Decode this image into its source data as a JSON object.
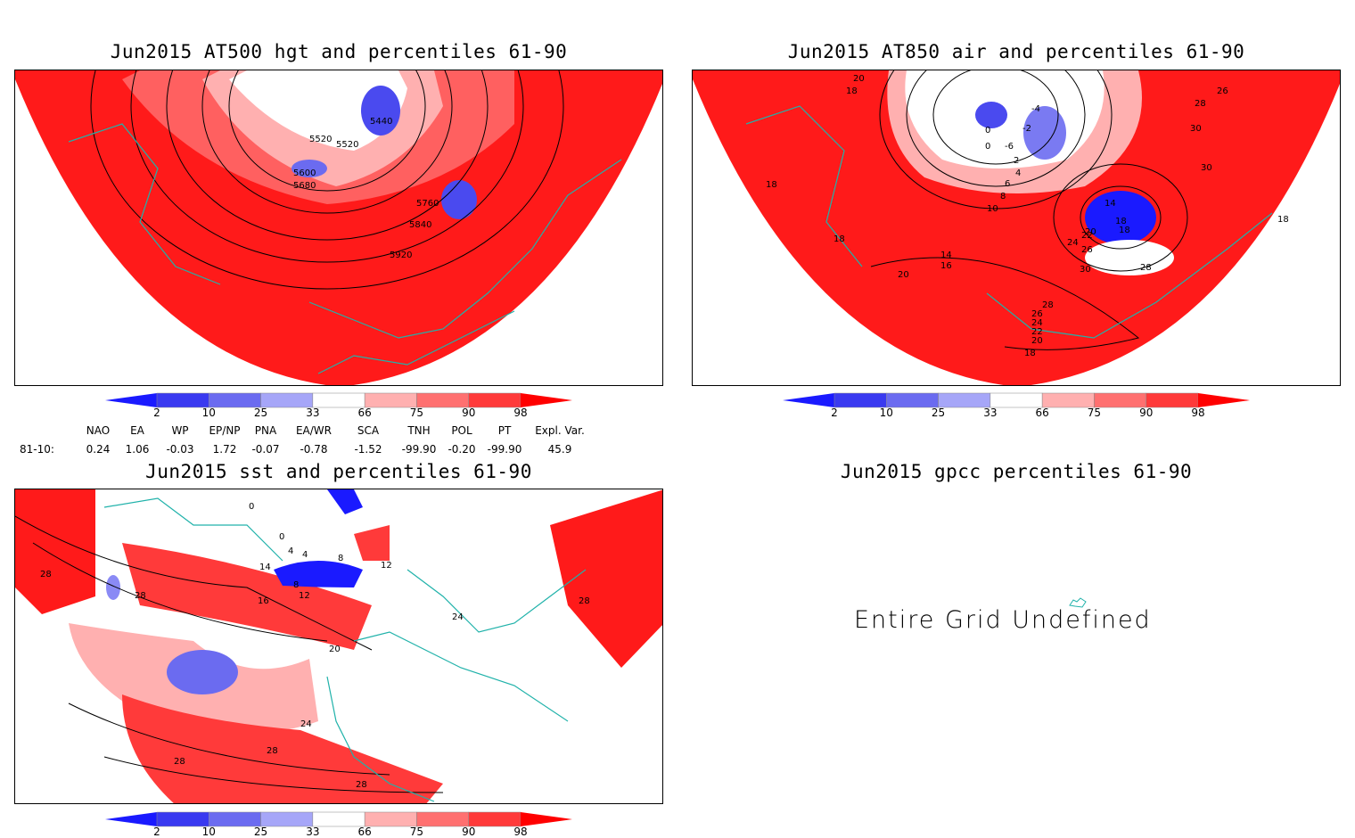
{
  "panels": {
    "hgt": {
      "title": "Jun2015 AT500 hgt and percentiles 61-90",
      "contour_labels": [
        "5440",
        "5520",
        "5520",
        "5600",
        "5680",
        "5760",
        "5840",
        "5920"
      ]
    },
    "air": {
      "title": "Jun2015 AT850 air and percentiles 61-90",
      "contour_labels": [
        "20",
        "18",
        "0",
        "-2",
        "-4",
        "-6",
        "0",
        "2",
        "4",
        "6",
        "8",
        "10",
        "14",
        "18",
        "18",
        "20",
        "24",
        "22",
        "26",
        "30",
        "28",
        "18",
        "20",
        "20",
        "18",
        "16",
        "14",
        "28",
        "26",
        "24",
        "22",
        "20",
        "18",
        "28",
        "30",
        "30",
        "26",
        "18"
      ]
    },
    "sst": {
      "title": "Jun2015 sst and percentiles 61-90",
      "contour_labels": [
        "28",
        "28",
        "16",
        "14",
        "8",
        "12",
        "4",
        "4",
        "8",
        "12",
        "0",
        "0",
        "20",
        "24",
        "24",
        "28",
        "28",
        "28",
        "28",
        "28"
      ]
    },
    "gpcc": {
      "title": "Jun2015 gpcc percentiles 61-90",
      "message": "Entire Grid Undefined"
    }
  },
  "colorbar": {
    "labels": [
      "2",
      "10",
      "25",
      "33",
      "66",
      "75",
      "90",
      "98"
    ],
    "colors": [
      "#1a1aff",
      "#3a3af0",
      "#6b6bf0",
      "#a6a6f8",
      "#ffffff",
      "#ffb0b0",
      "#ff7070",
      "#ff3a3a",
      "#ff0000"
    ]
  },
  "teleconnections": {
    "row_label": "81-10:",
    "headers": [
      "NAO",
      "EA",
      "WP",
      "EP/NP",
      "PNA",
      "EA/WR",
      "SCA",
      "TNH",
      "POL",
      "PT",
      "Expl. Var."
    ],
    "values": [
      "0.24",
      "1.06",
      "-0.03",
      "1.72",
      "-0.07",
      "-0.78",
      "-1.52",
      "-99.90",
      "-0.20",
      "-99.90",
      "45.9"
    ]
  },
  "colors": {
    "land_outline": "#20b2aa",
    "warm": "#ff0000",
    "cold": "#1a1aff"
  }
}
